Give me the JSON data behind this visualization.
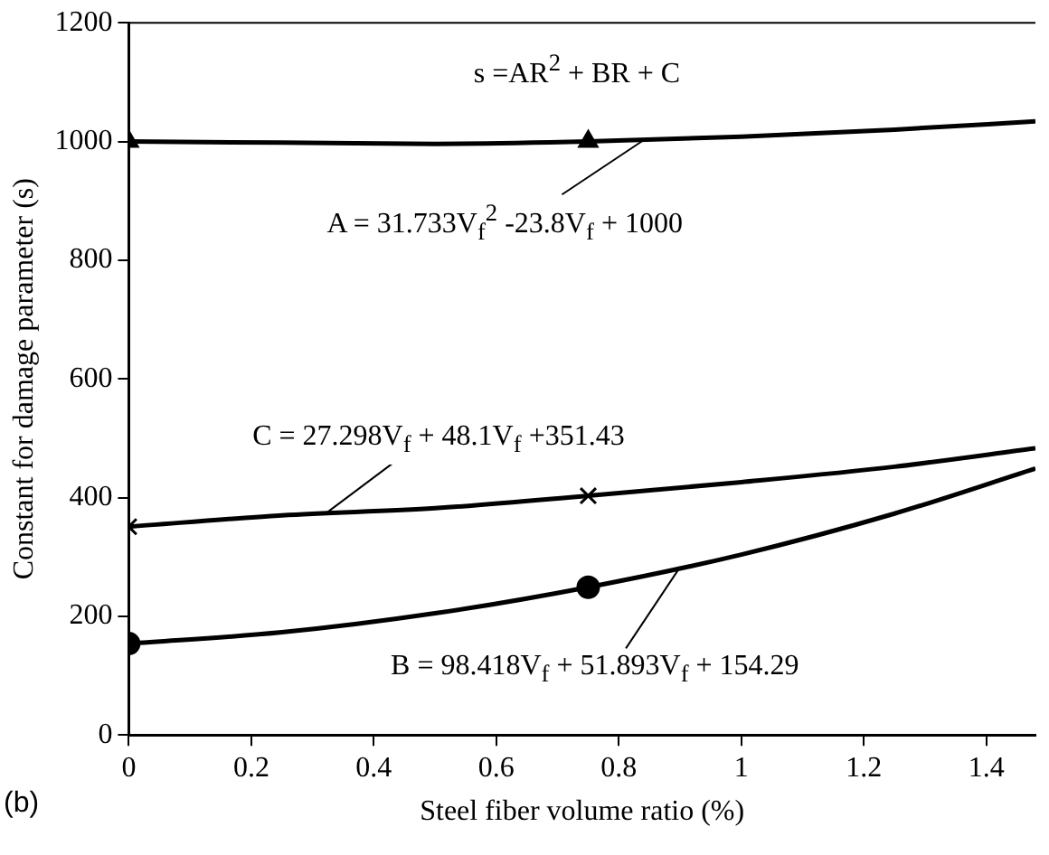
{
  "chart_data": {
    "type": "line",
    "xlabel": "Steel fiber volume ratio (%)",
    "ylabel": "Constant for damage parameter (s)",
    "xlim": [
      0,
      1.48
    ],
    "xticks": [
      0,
      0.2,
      0.4,
      0.6,
      0.8,
      1,
      1.2,
      1.4
    ],
    "ylim": [
      0,
      1200
    ],
    "yticks": [
      0,
      200,
      400,
      600,
      800,
      1000,
      1200
    ],
    "grid": false,
    "legend": false,
    "series": [
      {
        "type": "line",
        "color": "#000000",
        "marker": "none",
        "x": [
          0,
          0.25,
          0.5,
          0.75,
          1.0,
          1.25,
          1.48
        ],
        "values": [
          1000,
          998,
          996,
          1000,
          1008,
          1020,
          1034
        ]
      },
      {
        "type": "line",
        "color": "#000000",
        "marker": "none",
        "x": [
          0,
          0.25,
          0.5,
          0.75,
          1.0,
          1.25,
          1.48
        ],
        "values": [
          351,
          370,
          382,
          403,
          426,
          452,
          483
        ]
      },
      {
        "type": "line",
        "color": "#000000",
        "marker": "none",
        "x": [
          0,
          0.25,
          0.5,
          0.75,
          1.0,
          1.25,
          1.48
        ],
        "values": [
          154,
          173,
          205,
          249,
          304,
          373,
          449
        ]
      },
      {
        "type": "scatter",
        "color": "#000000",
        "marker": "triangle",
        "x": [
          0,
          0.75
        ],
        "values": [
          1000,
          1000
        ]
      },
      {
        "type": "scatter",
        "color": "#000000",
        "marker": "cross",
        "x": [
          0,
          0.75
        ],
        "values": [
          351,
          403
        ]
      },
      {
        "type": "scatter",
        "color": "#000000",
        "marker": "circle",
        "x": [
          0,
          0.75
        ],
        "values": [
          154,
          249
        ]
      }
    ],
    "annotations": [
      "s =AR$^{2}$ + BR + C",
      {
        "text": "A = 31.733V$_{f}$$^{2}$ -23.8V$_{f}$ + 1000",
        "x": 0.84,
        "y": 1002
      },
      {
        "text": "C = 27.298V$_{f}$ + 48.1V$_{f}$ +351.43",
        "x": 0.32,
        "y": 372
      },
      {
        "text": "B = 98.418V$_{f}$ + 51.893V$_{f}$ + 154.29",
        "x": 0.9,
        "y": 283
      },
      "(b)"
    ]
  }
}
